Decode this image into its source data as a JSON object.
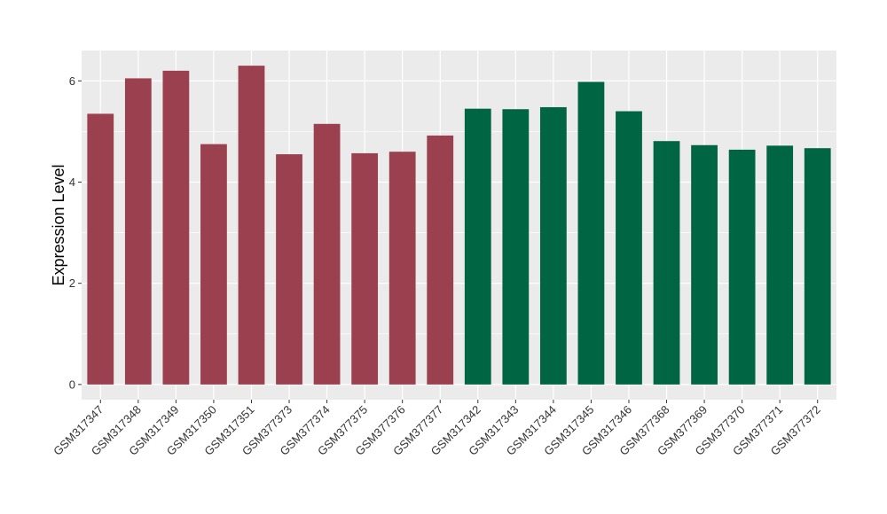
{
  "chart_data": {
    "type": "bar",
    "title": "",
    "xlabel": "",
    "ylabel": "Expression Level",
    "ylim": [
      -0.3,
      6.6
    ],
    "yticks": [
      0,
      2,
      4,
      6
    ],
    "grid": true,
    "legend": "none",
    "panel_color": "#ebebeb",
    "grid_color": "#ffffff",
    "categories": [
      "GSM317347",
      "GSM317348",
      "GSM317349",
      "GSM317350",
      "GSM317351",
      "GSM377373",
      "GSM377374",
      "GSM377375",
      "GSM377376",
      "GSM377377",
      "GSM317342",
      "GSM317343",
      "GSM317344",
      "GSM317345",
      "GSM317346",
      "GSM377368",
      "GSM377369",
      "GSM377370",
      "GSM377371",
      "GSM377372"
    ],
    "values": [
      5.35,
      6.05,
      6.2,
      4.75,
      6.3,
      4.55,
      5.15,
      4.57,
      4.6,
      4.92,
      5.45,
      5.44,
      5.48,
      5.98,
      5.4,
      4.81,
      4.73,
      4.64,
      4.72,
      4.67
    ],
    "colors": [
      "#9a404e",
      "#9a404e",
      "#9a404e",
      "#9a404e",
      "#9a404e",
      "#9a404e",
      "#9a404e",
      "#9a404e",
      "#9a404e",
      "#9a404e",
      "#006543",
      "#006543",
      "#006543",
      "#006543",
      "#006543",
      "#006543",
      "#006543",
      "#006543",
      "#006543",
      "#006543"
    ]
  }
}
